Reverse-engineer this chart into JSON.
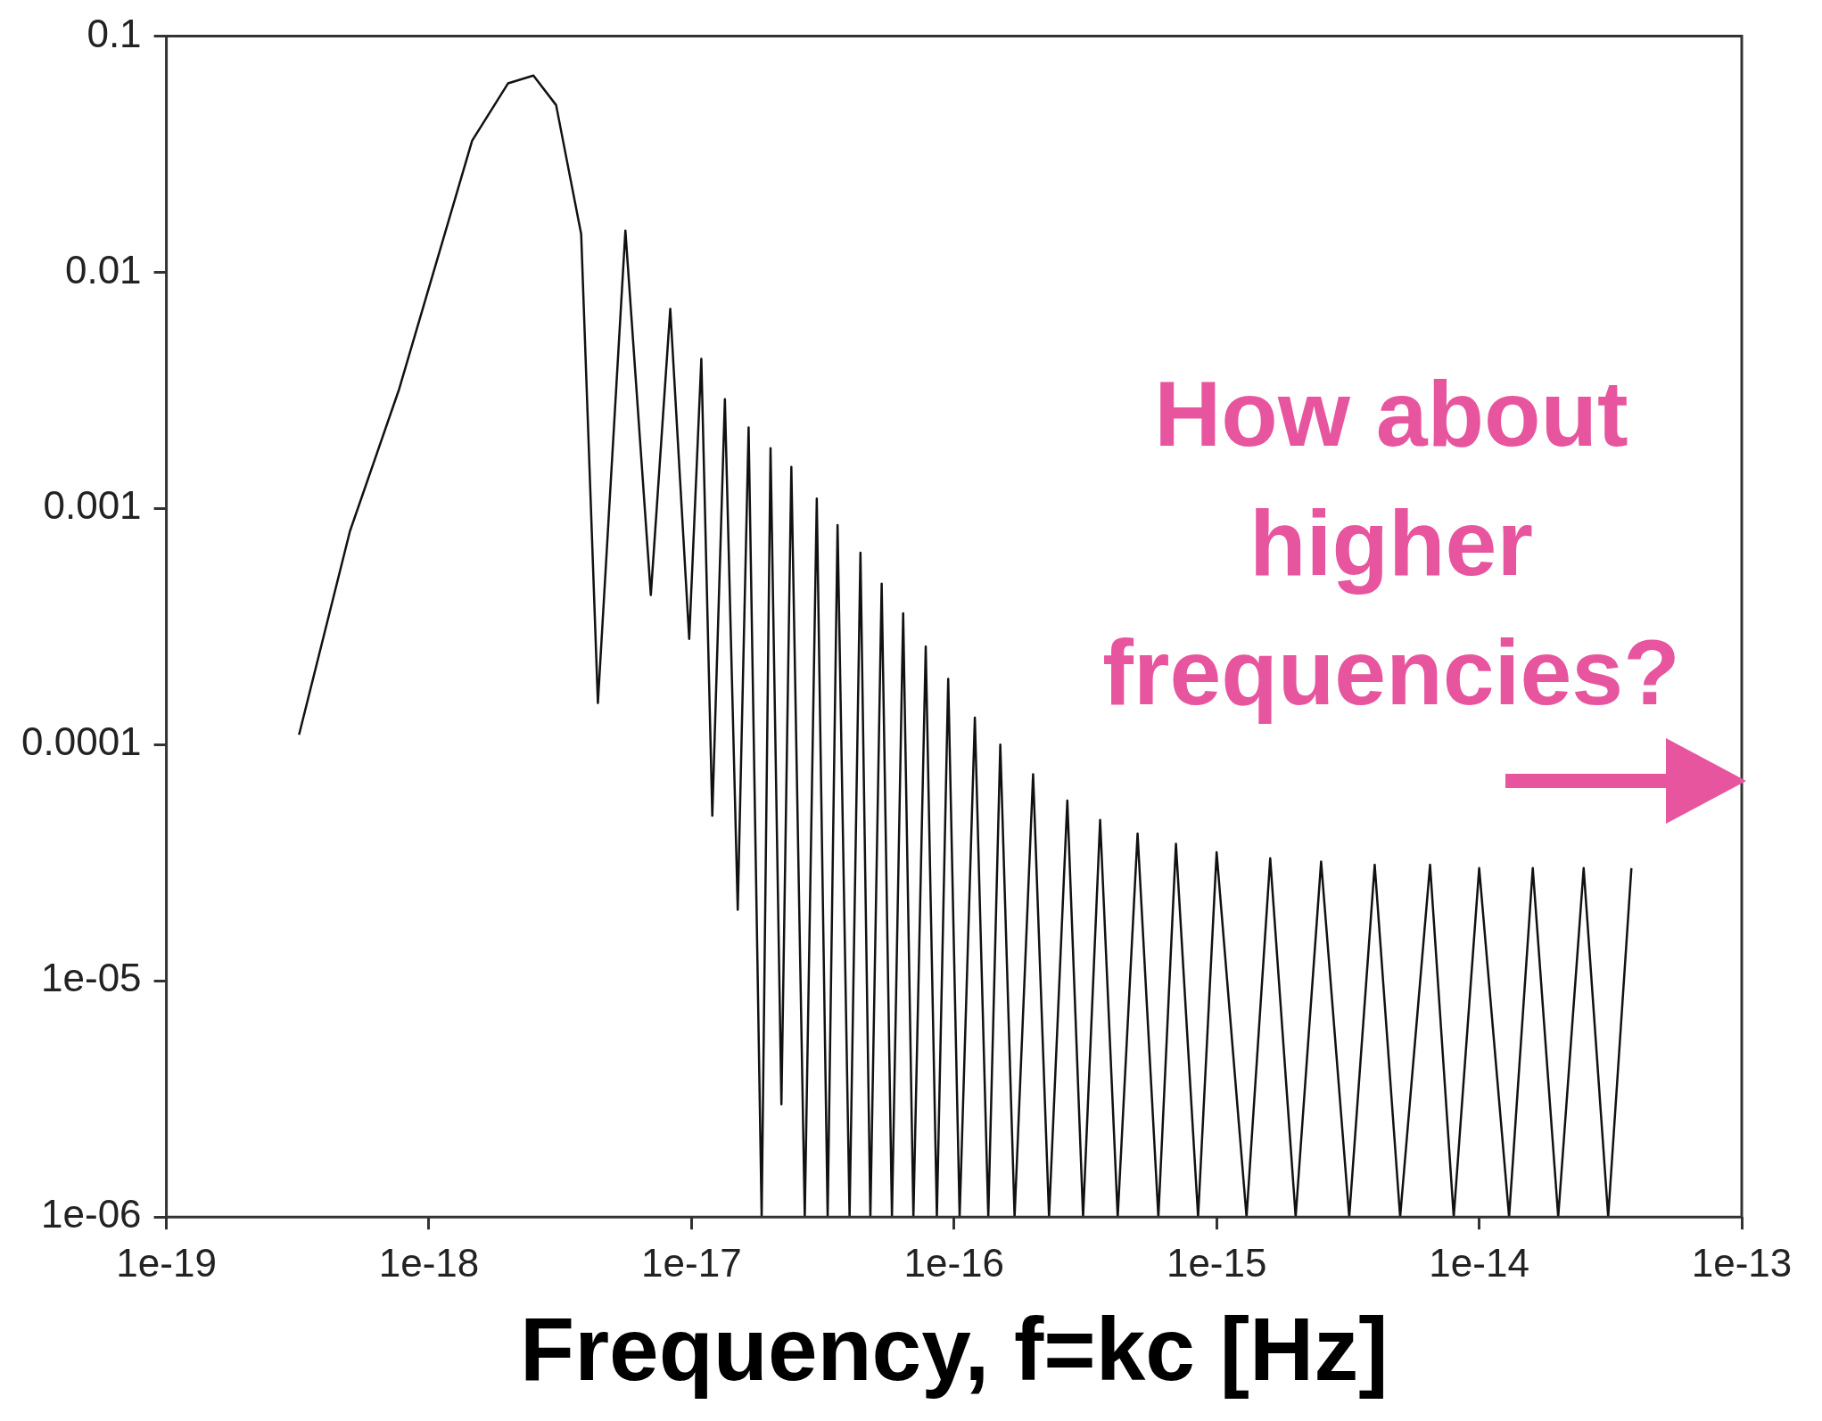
{
  "chart_data": {
    "type": "line",
    "xlabel": "Frequency, f=kc [Hz]",
    "annotations": [
      "How about higher frequencies?"
    ],
    "x": [
      3.2e-19,
      5e-19,
      7.7e-19,
      1.46e-18,
      2e-18,
      2.5e-18,
      3.05e-18,
      3.8e-18,
      4.4e-18,
      5.6e-18,
      7e-18,
      8.3e-18,
      9.8e-18,
      1.09e-17,
      1.2e-17,
      1.34e-17,
      1.5e-17,
      1.65e-17,
      1.85e-17,
      2e-17,
      2.2e-17,
      2.4e-17,
      2.7e-17,
      3e-17,
      3.3e-17,
      3.6e-17,
      4e-17,
      4.4e-17,
      4.8e-17,
      5.3e-17,
      5.8e-17,
      6.4e-17,
      7e-17,
      7.8e-17,
      8.6e-17,
      9.5e-17,
      1.05e-16,
      1.2e-16,
      1.35e-16,
      1.5e-16,
      1.7e-16,
      2e-16,
      2.3e-16,
      2.7e-16,
      3.1e-16,
      3.6e-16,
      4.2e-16,
      5e-16,
      6e-16,
      7e-16,
      8.5e-16,
      1e-15,
      1.3e-15,
      1.6e-15,
      2e-15,
      2.5e-15,
      3.2e-15,
      4e-15,
      5e-15,
      6.5e-15,
      8e-15,
      1e-14,
      1.3e-14,
      1.6e-14,
      2e-14,
      2.5e-14,
      3.1e-14,
      3.8e-14
    ],
    "series": [
      {
        "color": "#111111",
        "values": [
          0.00011,
          0.0008,
          0.0032,
          0.036,
          0.063,
          0.068,
          0.051,
          0.0145,
          0.00015,
          0.015,
          0.00043,
          0.007,
          0.00028,
          0.0043,
          5e-05,
          0.0029,
          2e-05,
          0.0022,
          1e-06,
          0.0018,
          3e-06,
          0.0015,
          1e-06,
          0.0011,
          1e-06,
          0.00085,
          1e-06,
          0.00065,
          1e-06,
          0.00048,
          1e-06,
          0.00036,
          1e-06,
          0.00026,
          1e-06,
          0.00019,
          1e-06,
          0.00013,
          1e-06,
          0.0001,
          1e-06,
          7.5e-05,
          1e-06,
          5.8e-05,
          1e-06,
          4.8e-05,
          1e-06,
          4.2e-05,
          1e-06,
          3.8e-05,
          1e-06,
          3.5e-05,
          1e-06,
          3.3e-05,
          1e-06,
          3.2e-05,
          1e-06,
          3.1e-05,
          1e-06,
          3.1e-05,
          1e-06,
          3e-05,
          1e-06,
          3e-05,
          1e-06,
          3e-05,
          1e-06,
          3e-05
        ]
      }
    ],
    "log": "xy",
    "xlim": [
      1e-19,
      1e-13
    ],
    "ylim": [
      1e-06,
      0.1
    ],
    "xticks": [
      {
        "value": 1e-19,
        "label": "1e-19"
      },
      {
        "value": 1e-18,
        "label": "1e-18"
      },
      {
        "value": 1e-17,
        "label": "1e-17"
      },
      {
        "value": 1e-16,
        "label": "1e-16"
      },
      {
        "value": 1e-15,
        "label": "1e-15"
      },
      {
        "value": 1e-14,
        "label": "1e-14"
      },
      {
        "value": 1e-13,
        "label": "1e-13"
      }
    ],
    "yticks": [
      {
        "value": 1e-06,
        "label": "1e-06"
      },
      {
        "value": 1e-05,
        "label": "1e-05"
      },
      0.0001,
      0.001,
      0.01,
      0.1
    ],
    "grid": false,
    "legend": false,
    "marker": "none",
    "line_style": "solid"
  }
}
